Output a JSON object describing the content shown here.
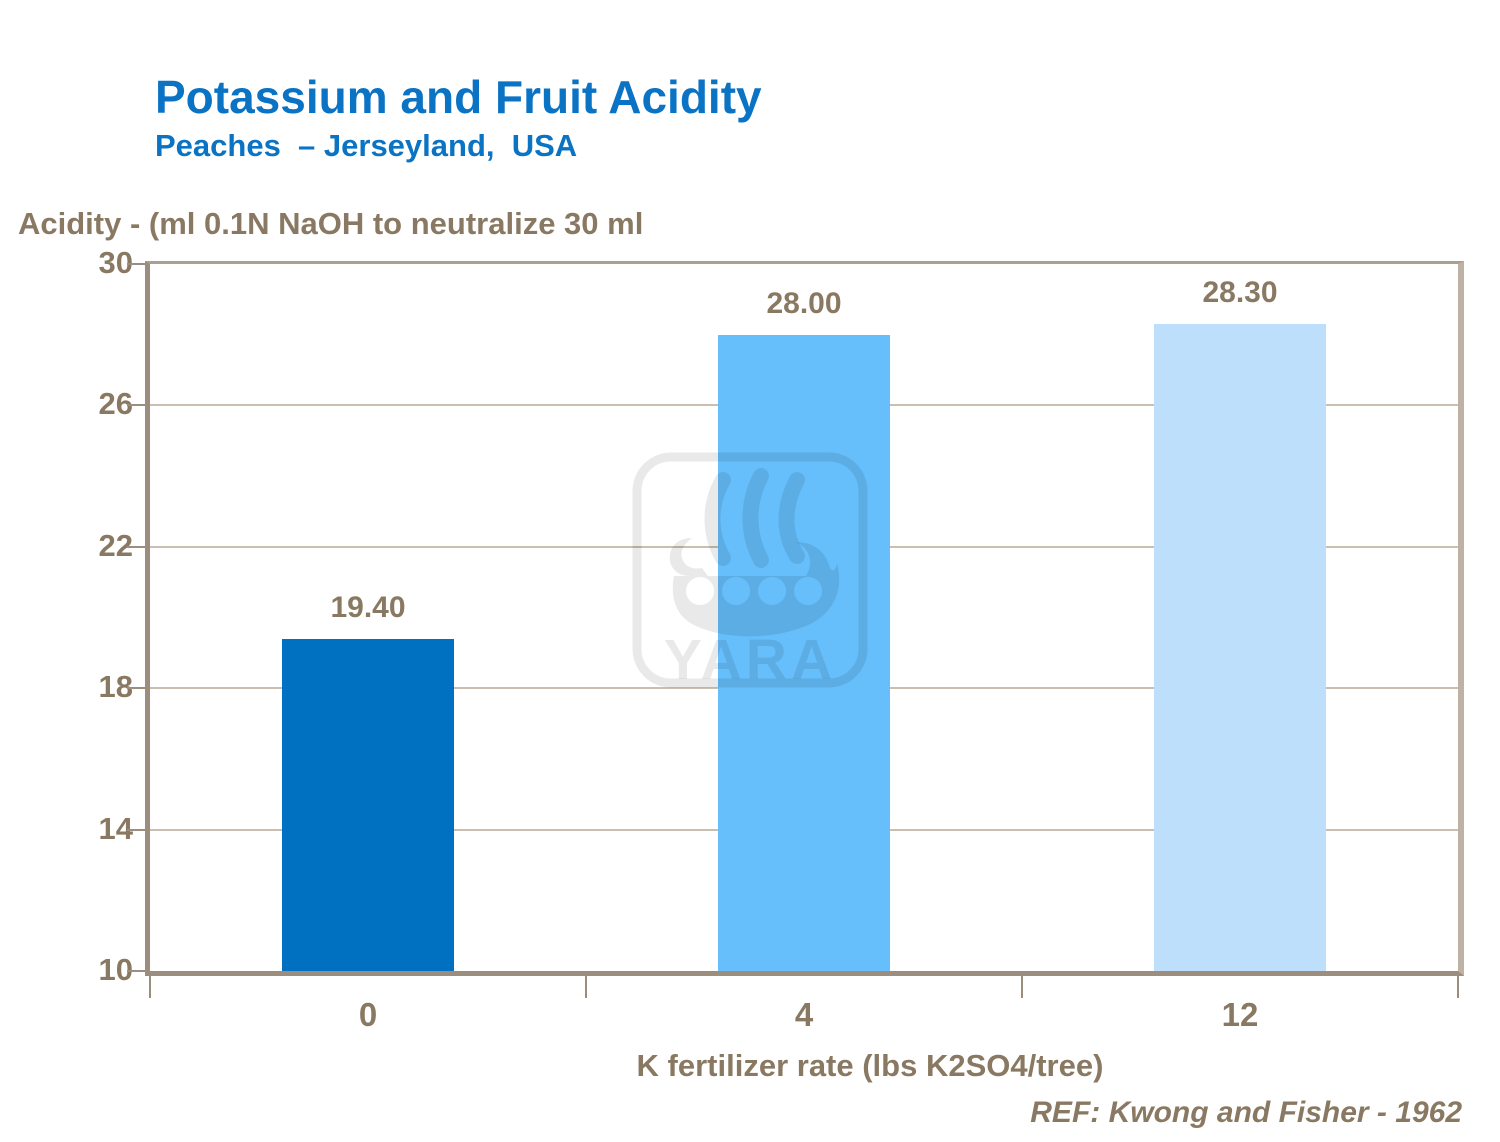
{
  "header": {
    "title": "Potassium and Fruit Acidity",
    "subtitle": "Peaches  – Jerseyland,  USA"
  },
  "chart_data": {
    "type": "bar",
    "title": "Potassium and Fruit Acidity",
    "subtitle": "Peaches – Jerseyland, USA",
    "categories": [
      "0",
      "4",
      "12"
    ],
    "values": [
      19.4,
      28.0,
      28.3
    ],
    "value_labels": [
      "19.40",
      "28.00",
      "28.30"
    ],
    "bar_colors": [
      "#0070C0",
      "#66BEFB",
      "#BDDFFB"
    ],
    "xlabel": "K fertilizer rate (lbs K2SO4/tree)",
    "ylabel": "Acidity - (ml 0.1N NaOH to neutralize 30 ml",
    "ylim": [
      10,
      30
    ],
    "yticks": [
      10,
      14,
      18,
      22,
      26,
      30
    ],
    "grid": true,
    "legend": false
  },
  "footer": {
    "reference": "REF: Kwong and Fisher - 1962"
  },
  "watermark": {
    "text": "YARA",
    "icon": "viking-ship-logo"
  },
  "colors": {
    "title_blue": "#0B73C4",
    "axis_text_brown": "#8A7962",
    "axis_line_dark": "#9C8E7E",
    "axis_line_light": "#BDB2A4",
    "gridline": "#C9BEAF",
    "background": "#FFFFFF"
  }
}
